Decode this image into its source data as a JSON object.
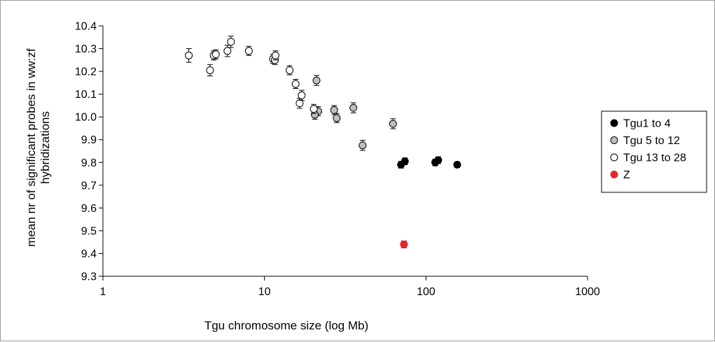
{
  "chart_data": {
    "type": "scatter",
    "title": "",
    "xlabel": "Tgu chromosome size (log Mb)",
    "ylabel_lines": [
      "mean nr of significant probes in ww:zf",
      "hybridizations"
    ],
    "xscale": "log",
    "xlim": [
      1,
      1000
    ],
    "ylim": [
      9.3,
      10.4
    ],
    "x_ticks": [
      1,
      10,
      100,
      1000
    ],
    "x_tick_labels": [
      "1",
      "10",
      "100",
      "1000"
    ],
    "y_ticks": [
      9.3,
      9.4,
      9.5,
      9.6,
      9.7,
      9.8,
      9.9,
      10.0,
      10.1,
      10.2,
      10.3,
      10.4
    ],
    "y_tick_labels": [
      "9.3",
      "9.4",
      "9.5",
      "9.6",
      "9.7",
      "9.8",
      "9.9",
      "10.0",
      "10.1",
      "10.2",
      "10.3",
      "10.4"
    ],
    "grid": false,
    "legend_position": "right",
    "series": [
      {
        "name": "Tgu1 to 4",
        "fill": "#000000",
        "stroke": "#000000",
        "points": [
          {
            "x": 70,
            "y": 9.79,
            "err": 0.015
          },
          {
            "x": 74,
            "y": 9.805,
            "err": 0.015
          },
          {
            "x": 114,
            "y": 9.8,
            "err": 0.015
          },
          {
            "x": 119,
            "y": 9.81,
            "err": 0.015
          },
          {
            "x": 156,
            "y": 9.79,
            "err": 0.012
          }
        ]
      },
      {
        "name": "Tgu 5 to 12",
        "fill": "#c0c0c0",
        "stroke": "#000000",
        "points": [
          {
            "x": 62.5,
            "y": 9.97,
            "err": 0.022
          },
          {
            "x": 40.5,
            "y": 9.875,
            "err": 0.022
          },
          {
            "x": 35.5,
            "y": 10.04,
            "err": 0.022
          },
          {
            "x": 28,
            "y": 9.995,
            "err": 0.02
          },
          {
            "x": 27,
            "y": 10.03,
            "err": 0.02
          },
          {
            "x": 21,
            "y": 10.16,
            "err": 0.022
          },
          {
            "x": 21.5,
            "y": 10.025,
            "err": 0.02
          },
          {
            "x": 20.5,
            "y": 10.01,
            "err": 0.02
          }
        ]
      },
      {
        "name": "Tgu 13 to 28",
        "fill": "#ffffff",
        "stroke": "#000000",
        "points": [
          {
            "x": 3.4,
            "y": 10.27,
            "err": 0.03
          },
          {
            "x": 4.6,
            "y": 10.205,
            "err": 0.025
          },
          {
            "x": 4.85,
            "y": 10.27,
            "err": 0.02
          },
          {
            "x": 5.0,
            "y": 10.275,
            "err": 0.02
          },
          {
            "x": 5.9,
            "y": 10.29,
            "err": 0.025
          },
          {
            "x": 6.2,
            "y": 10.33,
            "err": 0.025
          },
          {
            "x": 8.0,
            "y": 10.29,
            "err": 0.02
          },
          {
            "x": 11.3,
            "y": 10.255,
            "err": 0.02
          },
          {
            "x": 11.6,
            "y": 10.25,
            "err": 0.02
          },
          {
            "x": 11.7,
            "y": 10.27,
            "err": 0.02
          },
          {
            "x": 14.3,
            "y": 10.205,
            "err": 0.02
          },
          {
            "x": 15.6,
            "y": 10.145,
            "err": 0.02
          },
          {
            "x": 16.5,
            "y": 10.06,
            "err": 0.022
          },
          {
            "x": 17.0,
            "y": 10.095,
            "err": 0.022
          },
          {
            "x": 20.2,
            "y": 10.035,
            "err": 0.02
          }
        ]
      },
      {
        "name": "Z",
        "fill": "#e8262a",
        "stroke": "#e8262a",
        "points": [
          {
            "x": 73,
            "y": 9.44,
            "err": 0.015
          }
        ]
      }
    ]
  }
}
